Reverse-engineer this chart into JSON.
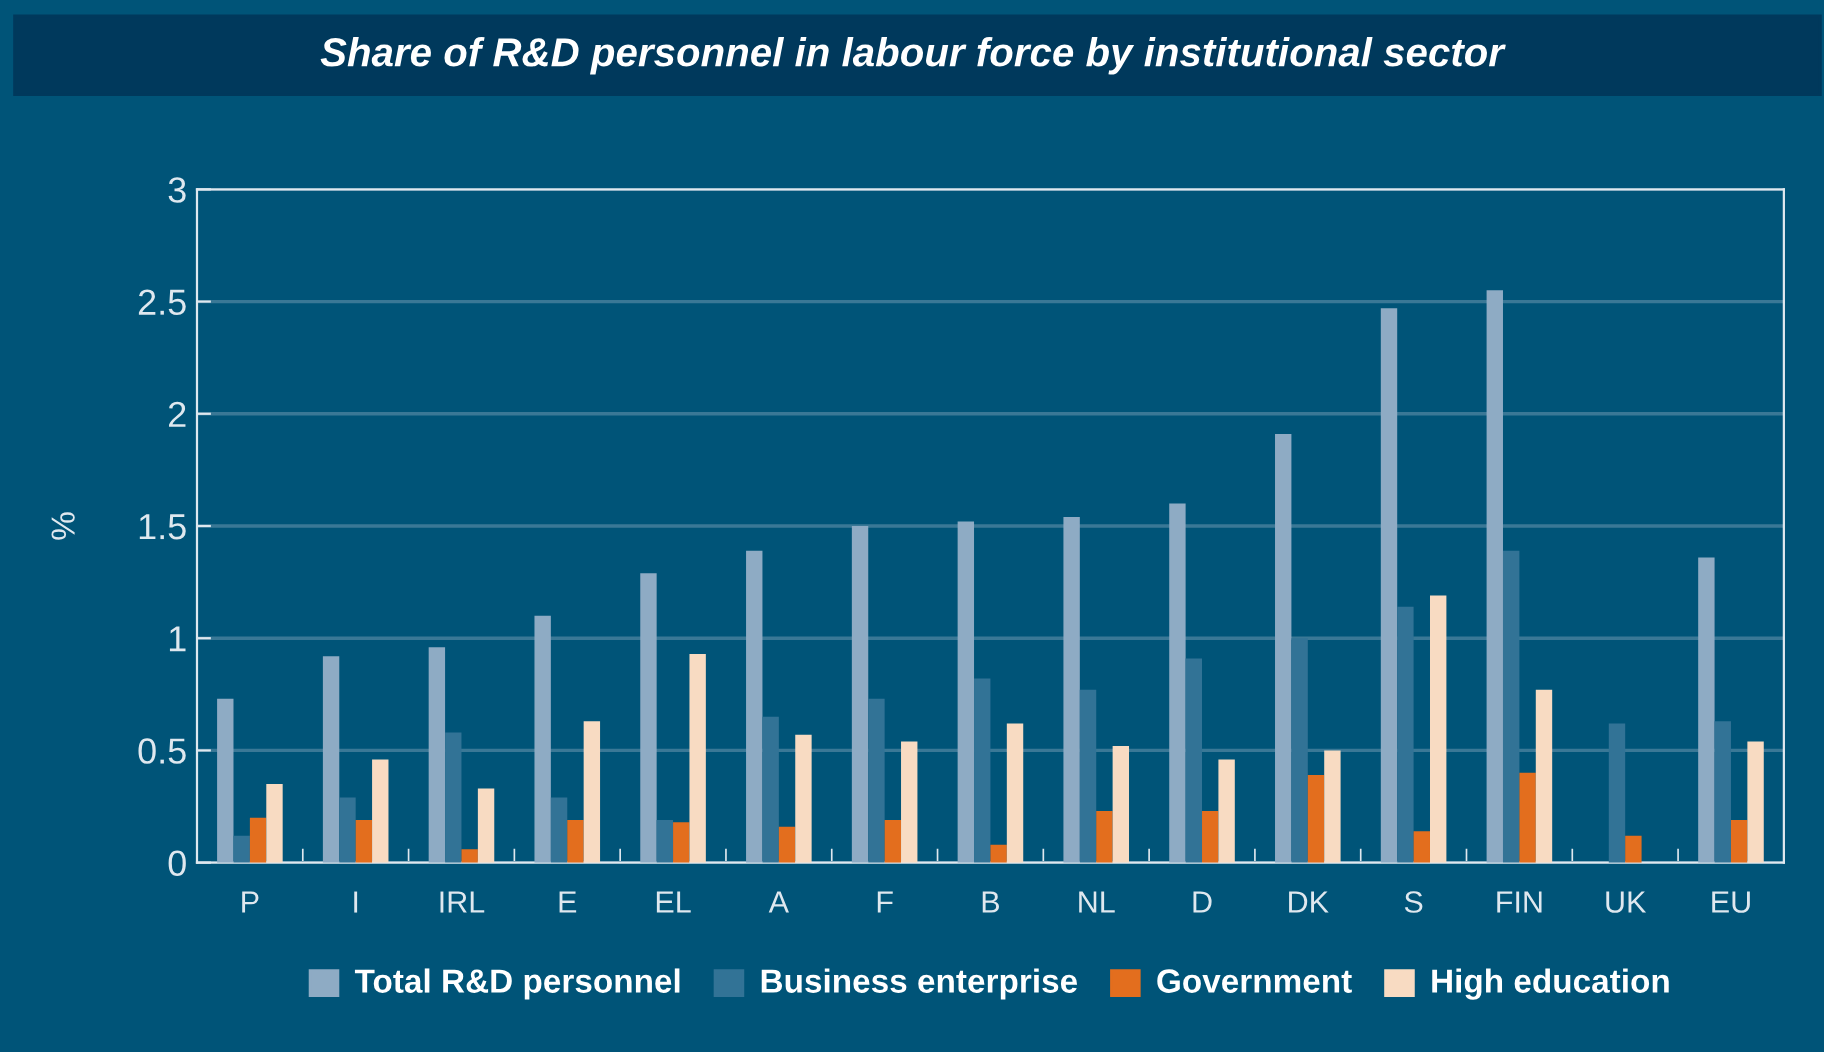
{
  "chart_data": {
    "type": "bar",
    "title": "Share of R&D personnel in labour force by institutional sector",
    "ylabel": "%",
    "categories": [
      "P",
      "I",
      "IRL",
      "E",
      "EL",
      "A",
      "F",
      "B",
      "NL",
      "D",
      "DK",
      "S",
      "FIN",
      "UK",
      "EU"
    ],
    "series": [
      {
        "name": "Total R&D personnel",
        "color": "#8eabc4",
        "values": [
          0.73,
          0.92,
          0.96,
          1.1,
          1.29,
          1.39,
          1.5,
          1.52,
          1.54,
          1.6,
          1.91,
          2.47,
          2.55,
          null,
          1.36
        ]
      },
      {
        "name": "Business enterprise",
        "color": "#327396",
        "values": [
          0.12,
          0.29,
          0.58,
          0.29,
          0.19,
          0.65,
          0.73,
          0.82,
          0.77,
          0.91,
          1.0,
          1.14,
          1.39,
          0.62,
          0.63
        ]
      },
      {
        "name": "Government",
        "color": "#e36e1e",
        "values": [
          0.2,
          0.19,
          0.06,
          0.19,
          0.18,
          0.16,
          0.19,
          0.08,
          0.23,
          0.23,
          0.39,
          0.14,
          0.4,
          0.12,
          0.19
        ]
      },
      {
        "name": "High education",
        "color": "#f8dbc2",
        "values": [
          0.35,
          0.46,
          0.33,
          0.63,
          0.93,
          0.57,
          0.54,
          0.62,
          0.52,
          0.46,
          0.5,
          1.19,
          0.77,
          null,
          0.54
        ]
      }
    ],
    "ylim": [
      0,
      3
    ],
    "yticks": [
      0,
      0.5,
      1,
      1.5,
      2,
      2.5,
      3
    ],
    "grid": "y",
    "legend": "bottom"
  }
}
